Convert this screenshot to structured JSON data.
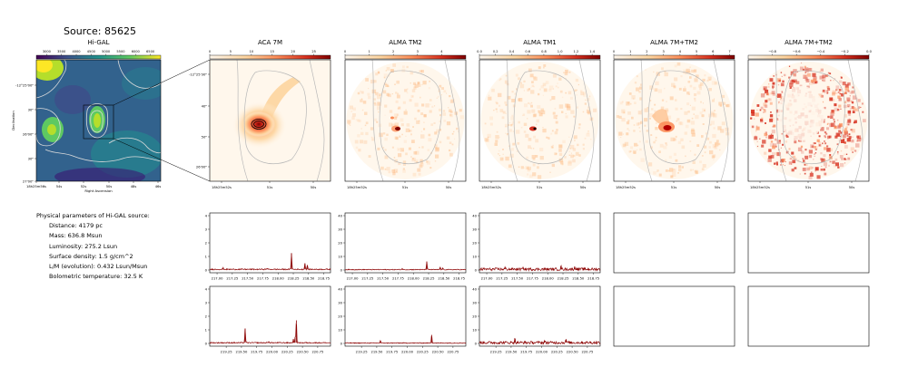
{
  "figure_title": "Source: 85625",
  "params": {
    "heading": "Physical parameters of Hi-GAL source:",
    "rows": [
      "Distance: 4179 pc",
      "Mass: 636.8 Msun",
      "Luminosity: 275.2 Lsun",
      "Surface density: 1.5 g/cm^2",
      "L/M (evolution): 0.432 Lsun/Msun",
      "Bolometric temperature: 32.5 K"
    ]
  },
  "colors": {
    "spectrum": "#8b0000",
    "frame": "#000000",
    "contour": "#b8b8b8"
  },
  "chart_data": [
    {
      "type": "heatmap",
      "id": "higal",
      "title": "Hi-GAL",
      "colormap": "viridis",
      "colorbar": {
        "ticks": [
          "3000",
          "3500",
          "4000",
          "4500",
          "5000",
          "5500",
          "6000",
          "6500"
        ],
        "range": [
          2650,
          6850
        ]
      },
      "xticks": [
        "18h25m56s",
        "54s",
        "52s",
        "50s",
        "48s",
        "46s"
      ],
      "yticks": [
        "-12°25'00\"",
        "30\"",
        "26'00\"",
        "30\"",
        "27'00\""
      ],
      "xlabel": "Right Ascension",
      "ylabel": "Declination"
    },
    {
      "type": "heatmap",
      "id": "aca7m",
      "title": "ACA 7M",
      "colormap": "OrRd",
      "colorbar": {
        "ticks": [
          "0",
          "5",
          "10",
          "15",
          "20",
          "25"
        ],
        "range": [
          0,
          29
        ]
      },
      "xticks": [
        "18h25m52s",
        "51s",
        "50s"
      ],
      "yticks": [
        "-12°25'30\"",
        "40\"",
        "50\"",
        "26'00\""
      ]
    },
    {
      "type": "heatmap",
      "id": "tm2",
      "title": "ALMA TM2",
      "colormap": "OrRd",
      "colorbar": {
        "ticks": [
          "0",
          "1",
          "2",
          "3",
          "4"
        ],
        "range": [
          0,
          5
        ]
      },
      "xticks": [
        "18h25m52s",
        "51s",
        "50s"
      ]
    },
    {
      "type": "heatmap",
      "id": "tm1",
      "title": "ALMA TM1",
      "colormap": "OrRd",
      "colorbar": {
        "ticks": [
          "0.0",
          "0.2",
          "0.4",
          "0.6",
          "0.8",
          "1.0",
          "1.2",
          "1.4"
        ],
        "range": [
          0,
          1.5
        ]
      },
      "xticks": [
        "18h25m52s",
        "51s",
        "50s"
      ]
    },
    {
      "type": "heatmap",
      "id": "7mtm2",
      "title": "ALMA 7M+TM2",
      "colormap": "OrRd",
      "colorbar": {
        "ticks": [
          "0",
          "1",
          "2",
          "3",
          "4",
          "5",
          "6",
          "7"
        ],
        "range": [
          0,
          7.3
        ]
      },
      "xticks": [
        "18h25m52s",
        "51s",
        "50s"
      ]
    },
    {
      "type": "heatmap",
      "id": "7mtm2b",
      "title": "ALMA 7M+TM2",
      "colormap": "OrRd",
      "colorbar": {
        "ticks": [
          "−0.8",
          "−0.6",
          "−0.4",
          "−0.2",
          "0.0"
        ],
        "range": [
          -1.0,
          0.0
        ]
      },
      "xticks": [
        "18h25m52s",
        "51s",
        "50s"
      ]
    },
    {
      "type": "line",
      "id": "spec-aca-u",
      "xlim": [
        216.88,
        218.86
      ],
      "ylim": [
        -0.2,
        4.2
      ],
      "xticks": [
        217.0,
        217.25,
        217.5,
        217.75,
        218.0,
        218.25,
        218.5,
        218.75
      ],
      "xtick_labels": [
        "217.00",
        "217.25",
        "217.50",
        "217.75",
        "218.00",
        "218.25",
        "218.50",
        "218.75"
      ],
      "yticks": [
        0,
        1,
        2,
        3,
        4
      ],
      "ytick_labels": [
        "0",
        "1",
        "2",
        "3",
        "4"
      ],
      "baseline": 0.05,
      "noise": 0.04,
      "peaks": [
        [
          218.22,
          1.2
        ],
        [
          218.44,
          0.45
        ],
        [
          218.48,
          0.3
        ],
        [
          217.1,
          0.1
        ],
        [
          217.82,
          0.08
        ]
      ]
    },
    {
      "type": "line",
      "id": "spec-tm2-u",
      "xlim": [
        216.88,
        218.86
      ],
      "ylim": [
        -2,
        42
      ],
      "xticks": [
        217.0,
        217.25,
        217.5,
        217.75,
        218.0,
        218.25,
        218.5,
        218.75
      ],
      "xtick_labels": [
        "217.00",
        "217.25",
        "217.50",
        "217.75",
        "218.00",
        "218.25",
        "218.50",
        "218.75"
      ],
      "yticks": [
        0,
        10,
        20,
        30,
        40
      ],
      "ytick_labels": [
        "0",
        "10",
        "20",
        "30",
        "40"
      ],
      "baseline": 0.3,
      "noise": 0.3,
      "peaks": [
        [
          218.22,
          6.0
        ],
        [
          218.44,
          1.8
        ],
        [
          218.48,
          1.2
        ],
        [
          217.82,
          0.8
        ]
      ]
    },
    {
      "type": "line",
      "id": "spec-tm1-u",
      "xlim": [
        216.88,
        218.86
      ],
      "ylim": [
        -2,
        42
      ],
      "xticks": [
        217.0,
        217.25,
        217.5,
        217.75,
        218.0,
        218.25,
        218.5,
        218.75
      ],
      "xtick_labels": [
        "217.00",
        "217.25",
        "217.50",
        "217.75",
        "218.00",
        "218.25",
        "218.50",
        "218.75"
      ],
      "yticks": [
        0,
        10,
        20,
        30,
        40
      ],
      "ytick_labels": [
        "0",
        "10",
        "20",
        "30",
        "40"
      ],
      "baseline": 0.6,
      "noise": 1.0,
      "peaks": [
        [
          218.22,
          2.2
        ],
        [
          218.44,
          1.4
        ],
        [
          218.47,
          1.0
        ],
        [
          217.3,
          1.2
        ],
        [
          217.6,
          1.0
        ]
      ]
    },
    {
      "type": "line",
      "id": "spec-aca-l",
      "xlim": [
        218.98,
        220.96
      ],
      "ylim": [
        -0.2,
        4.2
      ],
      "xticks": [
        219.25,
        219.5,
        219.75,
        220.0,
        220.25,
        220.5,
        220.75
      ],
      "xtick_labels": [
        "219.25",
        "219.50",
        "219.75",
        "220.00",
        "220.25",
        "220.50",
        "220.75"
      ],
      "yticks": [
        0,
        1,
        2,
        3,
        4
      ],
      "ytick_labels": [
        "0",
        "1",
        "2",
        "3",
        "4"
      ],
      "baseline": 0.05,
      "noise": 0.04,
      "peaks": [
        [
          219.56,
          1.05
        ],
        [
          220.4,
          1.65
        ],
        [
          220.38,
          0.4
        ],
        [
          220.35,
          0.25
        ],
        [
          219.95,
          0.1
        ]
      ]
    },
    {
      "type": "line",
      "id": "spec-tm2-l",
      "xlim": [
        218.98,
        220.96
      ],
      "ylim": [
        -2,
        42
      ],
      "xticks": [
        219.25,
        219.5,
        219.75,
        220.0,
        220.25,
        220.5,
        220.75
      ],
      "xtick_labels": [
        "219.25",
        "219.50",
        "219.75",
        "220.00",
        "220.25",
        "220.50",
        "220.75"
      ],
      "yticks": [
        0,
        10,
        20,
        30,
        40
      ],
      "ytick_labels": [
        "0",
        "10",
        "20",
        "30",
        "40"
      ],
      "baseline": 0.3,
      "noise": 0.3,
      "peaks": [
        [
          220.4,
          6.0
        ],
        [
          219.56,
          1.8
        ]
      ]
    },
    {
      "type": "line",
      "id": "spec-tm1-l",
      "xlim": [
        218.98,
        220.96
      ],
      "ylim": [
        -2,
        42
      ],
      "xticks": [
        219.25,
        219.5,
        219.75,
        220.0,
        220.25,
        220.5,
        220.75
      ],
      "xtick_labels": [
        "219.25",
        "219.50",
        "219.75",
        "220.00",
        "220.25",
        "220.50",
        "220.75"
      ],
      "yticks": [
        0,
        10,
        20,
        30,
        40
      ],
      "ytick_labels": [
        "0",
        "10",
        "20",
        "30",
        "40"
      ],
      "baseline": 0.6,
      "noise": 1.0,
      "peaks": [
        [
          219.56,
          3.2
        ],
        [
          220.4,
          2.6
        ],
        [
          220.05,
          1.2
        ]
      ]
    }
  ]
}
